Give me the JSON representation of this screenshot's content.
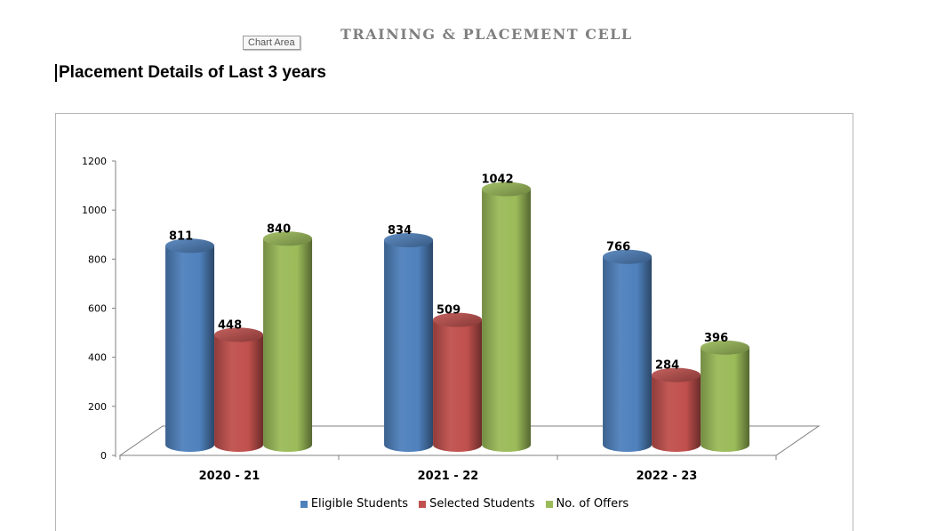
{
  "header": {
    "title": "TRAINING & PLACEMENT CELL",
    "chart_area_tooltip": "Chart Area"
  },
  "page_heading": "Placement Details of Last 3 years",
  "chart_data": {
    "type": "bar",
    "title": "",
    "xlabel": "",
    "ylabel": "",
    "ylim": [
      0,
      1200
    ],
    "yticks": [
      0,
      200,
      400,
      600,
      800,
      1000,
      1200
    ],
    "categories": [
      "2020 - 21",
      "2021 - 22",
      "2022 - 23"
    ],
    "series": [
      {
        "name": "Eligible Students",
        "color": "#4f81bd",
        "values": [
          811,
          834,
          766
        ]
      },
      {
        "name": "Selected Students",
        "color": "#c0504d",
        "values": [
          448,
          509,
          284
        ]
      },
      {
        "name": "No. of Offers",
        "color": "#9bbb59",
        "values": [
          840,
          1042,
          396
        ]
      }
    ],
    "data_labels": true,
    "grid": false,
    "legend_position": "bottom",
    "style": "3d-cylinder"
  }
}
